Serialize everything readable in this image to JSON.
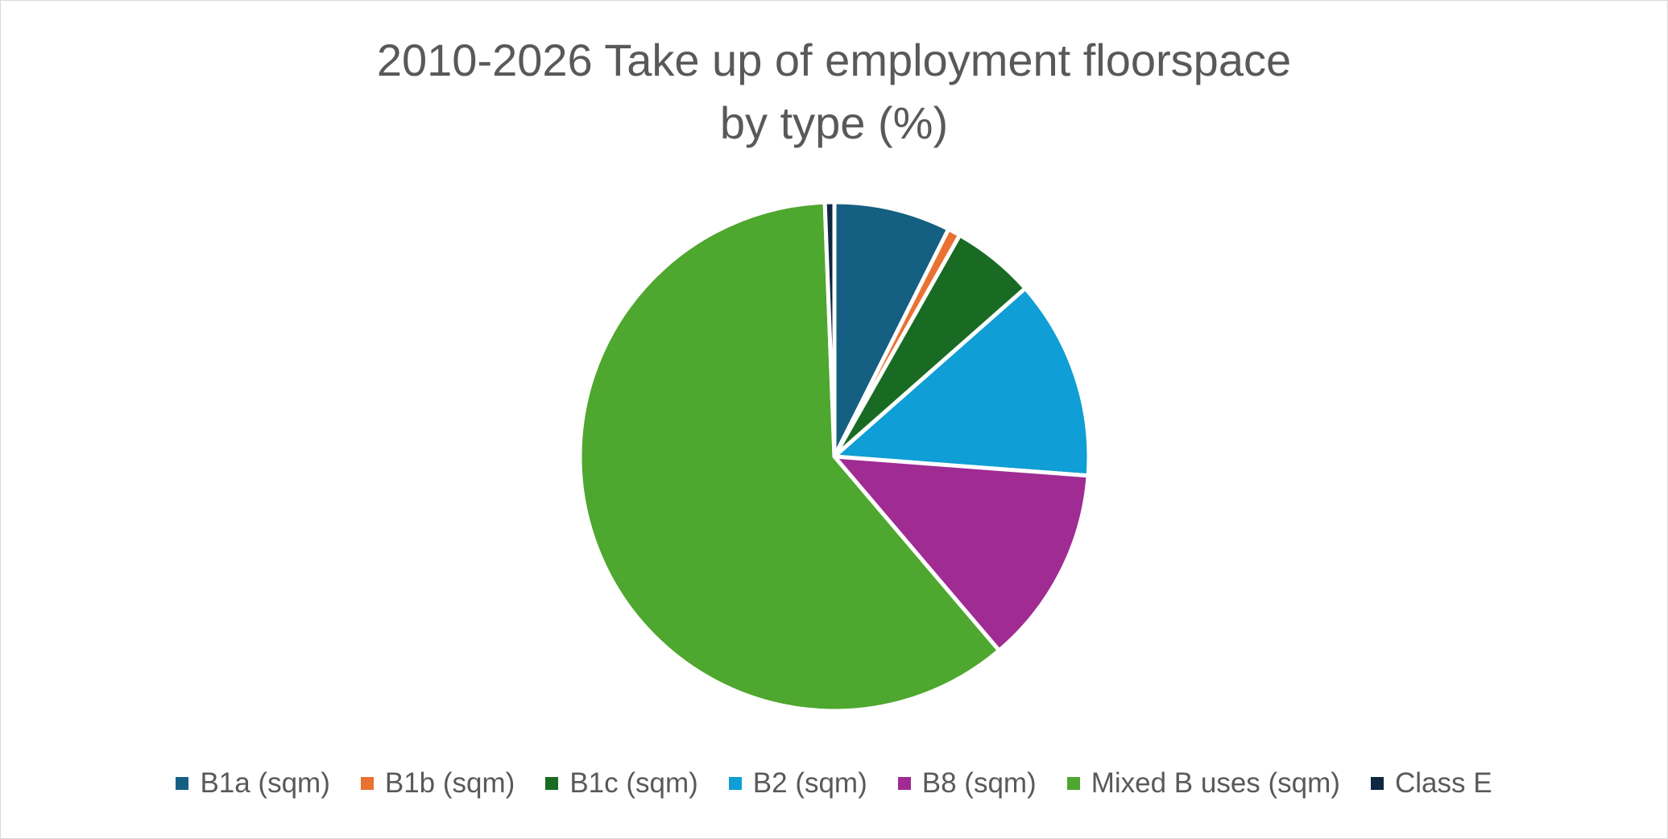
{
  "chart_data": {
    "type": "pie",
    "title_lines": [
      "2010-2026 Take up of employment floorspace",
      "by type (%)"
    ],
    "legend_position": "bottom",
    "start_angle_deg": 0,
    "direction": "clockwise",
    "slices": [
      {
        "label": "B1a (sqm)",
        "value": 7.4,
        "color": "#156082"
      },
      {
        "label": "B1b (sqm)",
        "value": 0.8,
        "color": "#E97132"
      },
      {
        "label": "B1c (sqm)",
        "value": 5.3,
        "color": "#196B24"
      },
      {
        "label": "B2 (sqm)",
        "value": 12.7,
        "color": "#0F9ED5"
      },
      {
        "label": "B8 (sqm)",
        "value": 12.6,
        "color": "#A02B93"
      },
      {
        "label": "Mixed B uses (sqm)",
        "value": 60.6,
        "color": "#4EA72E"
      },
      {
        "label": "Class E",
        "value": 0.6,
        "color": "#0E2841"
      }
    ]
  }
}
